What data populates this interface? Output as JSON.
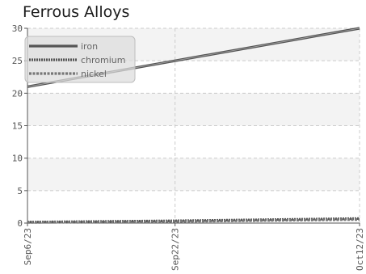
{
  "chart_data": {
    "type": "line",
    "title": "Ferrous Alloys",
    "xlabel": "",
    "ylabel": "",
    "x_ticks": [
      "Sep6/23",
      "Sep22/23",
      "Oct12/23"
    ],
    "x_range": [
      "Sep6/23",
      "Oct12/23"
    ],
    "ylim": [
      0,
      30
    ],
    "y_ticks": [
      0,
      5,
      10,
      15,
      20,
      25,
      30
    ],
    "grid": true,
    "legend_position": "top-left",
    "series": [
      {
        "name": "iron",
        "color": "#555555",
        "style": "solid",
        "points": [
          [
            "Sep6/23",
            21
          ],
          [
            "Sep22/23",
            25
          ],
          [
            "Oct12/23",
            30
          ]
        ]
      },
      {
        "name": "chromium",
        "color": "#555555",
        "style": "dotted",
        "points": [
          [
            "Sep6/23",
            0.15
          ],
          [
            "Sep22/23",
            0.35
          ],
          [
            "Oct12/23",
            0.7
          ]
        ]
      },
      {
        "name": "nickel",
        "color": "#777777",
        "style": "dashed",
        "points": [
          [
            "Sep6/23",
            0.1
          ],
          [
            "Sep22/23",
            0.25
          ],
          [
            "Oct12/23",
            0.55
          ]
        ]
      }
    ]
  }
}
